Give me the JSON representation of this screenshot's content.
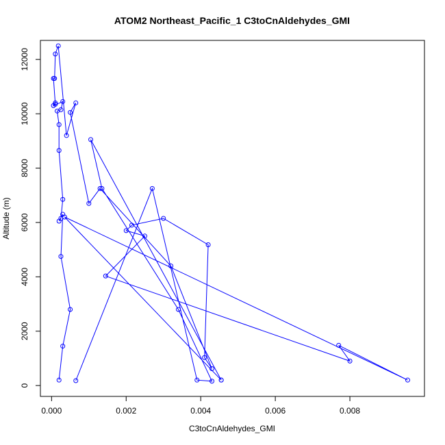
{
  "chart_data": {
    "type": "line",
    "title": "ATOM2 Northeast_Pacific_1 C3toCnAldehydes_GMI",
    "xlabel": "C3toCnAldehydes_GMI",
    "ylabel": "Altitude (m)",
    "xlim": [
      -0.0003,
      0.01
    ],
    "ylim": [
      -400,
      12700
    ],
    "x_ticks": [
      0.0,
      0.002,
      0.004,
      0.006,
      0.008
    ],
    "x_tick_labels": [
      "0.000",
      "0.002",
      "0.004",
      "0.006",
      "0.008"
    ],
    "y_ticks": [
      0,
      2000,
      4000,
      6000,
      8000,
      10000,
      12000
    ],
    "y_tick_labels": [
      "0",
      "2000",
      "4000",
      "6000",
      "8000",
      "10000",
      "12000"
    ],
    "grid": false,
    "legend": "none",
    "color": "#0000ff",
    "marker": "open-circle",
    "series": [
      {
        "x": [
          0.0002,
          0.0003,
          0.0005,
          0.00025,
          0.0003,
          0.0002,
          0.00025,
          0.0003,
          0.0002,
          0.0002,
          0.00015,
          0.00025,
          0.0003,
          5e-05,
          0.0001,
          0.0001,
          5e-05,
          8e-05,
          0.0001,
          0.00018,
          0.0004,
          0.00065,
          0.0005,
          0.001,
          0.0013,
          0.0032,
          0.0043,
          0.0041,
          0.0042,
          0.003,
          0.00215,
          0.002,
          0.0025,
          0.00145,
          0.008,
          0.0077,
          0.00955,
          0.00035,
          0.00455,
          0.00455,
          0.00105,
          0.00135,
          0.0034,
          0.0043,
          0.0039,
          0.0027,
          0.00065
        ],
        "y": [
          200,
          1450,
          2800,
          4750,
          6300,
          6050,
          6150,
          6850,
          8650,
          9600,
          10100,
          10150,
          10450,
          10300,
          10400,
          10350,
          11300,
          11300,
          12200,
          12500,
          9200,
          10400,
          10050,
          6700,
          7250,
          4400,
          620,
          1030,
          5180,
          6150,
          5900,
          5700,
          5500,
          4030,
          900,
          1480,
          200,
          6200,
          200,
          200,
          9050,
          7250,
          2800,
          160,
          200,
          7250,
          180
        ]
      }
    ]
  }
}
